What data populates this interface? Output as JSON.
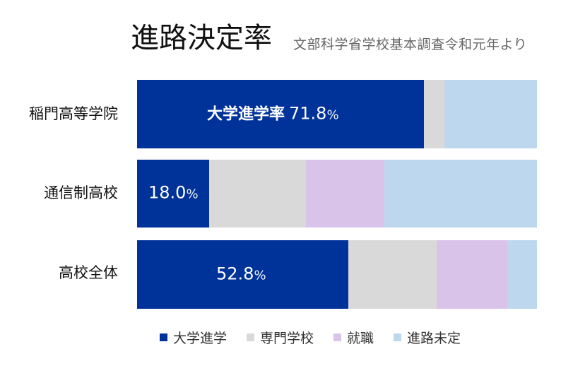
{
  "title": "進路決定率",
  "subtitle": "文部科学省学校基本調査令和元年より",
  "colors": {
    "university": "#003399",
    "vocational": "#D9D9D9",
    "employment": "#D9C3E9",
    "undecided": "#BDD7EE"
  },
  "rows": [
    {
      "label": "稲門高等学院",
      "segments": [
        {
          "key": "university",
          "value": 71.8,
          "label_prefix": "大学進学率",
          "label_value": "71.8",
          "label_unit": "%"
        },
        {
          "key": "vocational",
          "value": 5.1
        },
        {
          "key": "employment",
          "value": 0
        },
        {
          "key": "undecided",
          "value": 23.1
        }
      ]
    },
    {
      "label": "通信制高校",
      "segments": [
        {
          "key": "university",
          "value": 18.0,
          "label_prefix": "",
          "label_value": "18.0",
          "label_unit": "%"
        },
        {
          "key": "vocational",
          "value": 24.2
        },
        {
          "key": "employment",
          "value": 19.6
        },
        {
          "key": "undecided",
          "value": 38.2
        }
      ]
    },
    {
      "label": "高校全体",
      "segments": [
        {
          "key": "university",
          "value": 52.8,
          "label_prefix": "",
          "label_value": "52.8",
          "label_unit": "%"
        },
        {
          "key": "vocational",
          "value": 22.1
        },
        {
          "key": "employment",
          "value": 17.7
        },
        {
          "key": "undecided",
          "value": 7.4
        }
      ]
    }
  ],
  "legend": [
    {
      "key": "university",
      "label": "大学進学"
    },
    {
      "key": "vocational",
      "label": "専門学校"
    },
    {
      "key": "employment",
      "label": "就職"
    },
    {
      "key": "undecided",
      "label": "進路未定"
    }
  ],
  "chart_data": {
    "type": "bar",
    "orientation": "horizontal",
    "stacked": true,
    "normalized_100": true,
    "title": "進路決定率",
    "subtitle": "文部科学省学校基本調査令和元年より",
    "categories": [
      "稲門高等学院",
      "通信制高校",
      "高校全体"
    ],
    "series": [
      {
        "name": "大学進学",
        "color": "#003399",
        "values": [
          71.8,
          18.0,
          52.8
        ]
      },
      {
        "name": "専門学校",
        "color": "#D9D9D9",
        "values": [
          5.1,
          24.2,
          22.1
        ]
      },
      {
        "name": "就職",
        "color": "#D9C3E9",
        "values": [
          0,
          19.6,
          17.7
        ]
      },
      {
        "name": "進路未定",
        "color": "#BDD7EE",
        "values": [
          23.1,
          38.2,
          7.4
        ]
      }
    ],
    "data_labels": [
      "大学進学率 71.8%",
      "18.0%",
      "52.8%"
    ],
    "xlabel": "",
    "ylabel": "",
    "xlim": [
      0,
      100
    ],
    "grid": false,
    "legend_position": "bottom"
  }
}
